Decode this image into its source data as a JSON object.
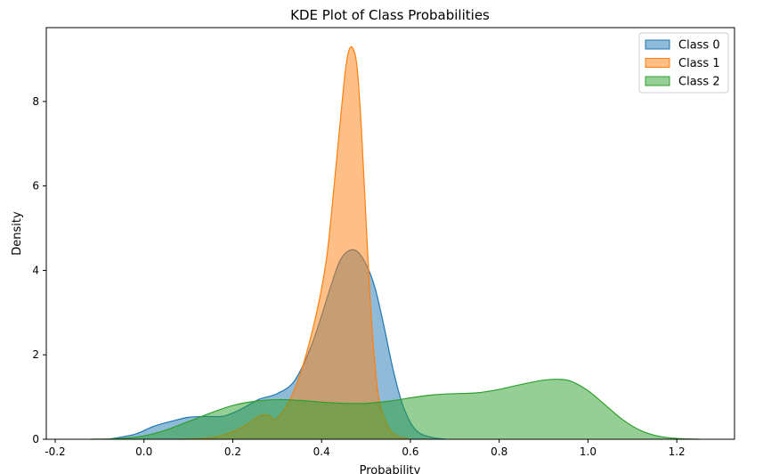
{
  "chart_data": {
    "type": "area",
    "title": "KDE Plot of Class Probabilities",
    "xlabel": "Probability",
    "ylabel": "Density",
    "xlim": [
      -0.22,
      1.33
    ],
    "ylim": [
      0,
      9.75
    ],
    "xticks": [
      -0.2,
      0.0,
      0.2,
      0.4,
      0.6,
      0.8,
      1.0,
      1.2
    ],
    "xtick_labels": [
      "-0.2",
      "0.0",
      "0.2",
      "0.4",
      "0.6",
      "0.8",
      "1.0",
      "1.2"
    ],
    "yticks": [
      0,
      2,
      4,
      6,
      8
    ],
    "ytick_labels": [
      "0",
      "2",
      "4",
      "6",
      "8"
    ],
    "grid": false,
    "legend_position": "top-right",
    "series": [
      {
        "name": "Class 0",
        "color": "#1f77b4",
        "x": [
          -0.08,
          -0.02,
          0.02,
          0.06,
          0.1,
          0.14,
          0.18,
          0.22,
          0.26,
          0.3,
          0.34,
          0.38,
          0.42,
          0.44,
          0.46,
          0.48,
          0.5,
          0.52,
          0.54,
          0.56,
          0.58,
          0.6,
          0.62,
          0.65,
          0.68
        ],
        "y": [
          0.0,
          0.12,
          0.3,
          0.42,
          0.52,
          0.54,
          0.55,
          0.72,
          0.95,
          1.08,
          1.4,
          2.3,
          3.6,
          4.2,
          4.46,
          4.45,
          4.15,
          3.6,
          2.7,
          1.7,
          0.9,
          0.4,
          0.15,
          0.04,
          0.0
        ]
      },
      {
        "name": "Class 1",
        "color": "#ff7f0e",
        "x": [
          0.08,
          0.16,
          0.22,
          0.26,
          0.28,
          0.3,
          0.34,
          0.38,
          0.41,
          0.43,
          0.45,
          0.46,
          0.47,
          0.48,
          0.49,
          0.5,
          0.51,
          0.52,
          0.53,
          0.55,
          0.57,
          0.6
        ],
        "y": [
          0.0,
          0.05,
          0.28,
          0.55,
          0.57,
          0.5,
          1.2,
          2.6,
          4.2,
          6.2,
          8.4,
          9.15,
          9.27,
          8.8,
          7.3,
          5.2,
          3.2,
          1.8,
          0.9,
          0.3,
          0.08,
          0.0
        ]
      },
      {
        "name": "Class 2",
        "color": "#2ca02c",
        "x": [
          -0.12,
          -0.05,
          0.0,
          0.05,
          0.1,
          0.15,
          0.2,
          0.25,
          0.3,
          0.35,
          0.4,
          0.45,
          0.5,
          0.55,
          0.6,
          0.65,
          0.7,
          0.75,
          0.8,
          0.85,
          0.9,
          0.93,
          0.96,
          1.0,
          1.04,
          1.08,
          1.12,
          1.16,
          1.2,
          1.25
        ],
        "y": [
          0.0,
          0.02,
          0.08,
          0.22,
          0.42,
          0.62,
          0.8,
          0.9,
          0.94,
          0.92,
          0.88,
          0.85,
          0.85,
          0.9,
          0.98,
          1.05,
          1.08,
          1.1,
          1.18,
          1.3,
          1.4,
          1.42,
          1.38,
          1.15,
          0.8,
          0.45,
          0.2,
          0.07,
          0.02,
          0.0
        ]
      }
    ]
  }
}
